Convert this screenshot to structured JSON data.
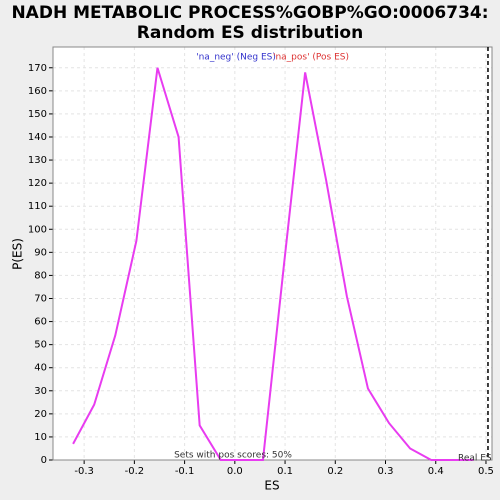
{
  "chart_data": {
    "type": "line",
    "title": [
      "NADH METABOLIC PROCESS%GOBP%GO:0006734:",
      "Random ES distribution"
    ],
    "x_label": "ES",
    "y_label": "P(ES)",
    "x": [
      -0.322,
      -0.28,
      -0.238,
      -0.196,
      -0.154,
      -0.112,
      -0.07,
      -0.028,
      0.014,
      0.056,
      0.098,
      0.14,
      0.182,
      0.223,
      0.265,
      0.307,
      0.349,
      0.391,
      0.433,
      0.475
    ],
    "series": [
      {
        "name": "P(ES)",
        "color": "#e83cf0",
        "values": [
          7,
          24,
          54,
          95,
          170,
          140,
          15,
          0,
          0,
          0,
          85,
          168,
          121,
          71,
          31,
          16,
          5,
          0,
          0,
          0
        ]
      }
    ],
    "xlim": [
      -0.362,
      0.512
    ],
    "ylim": [
      0,
      179
    ],
    "xticks": [
      -0.3,
      -0.2,
      -0.1,
      {
        "value": 0,
        "label": "0.0"
      },
      0.1,
      0.2,
      0.3,
      0.4,
      0.5
    ],
    "yticks": [
      0,
      10,
      20,
      30,
      40,
      50,
      60,
      70,
      80,
      90,
      100,
      110,
      120,
      130,
      140,
      150,
      160,
      170
    ],
    "grid": true,
    "annotations": [
      {
        "text": "'na_neg' (Neg ES)",
        "color": "#3333cc"
      },
      {
        "text": "'na_pos' (Pos ES)",
        "color": "#dd3333"
      },
      {
        "text": "Sets with pos scores: 50%",
        "color": "#333333"
      }
    ],
    "real_es": {
      "value": 0.504,
      "label": "Real ES"
    }
  }
}
